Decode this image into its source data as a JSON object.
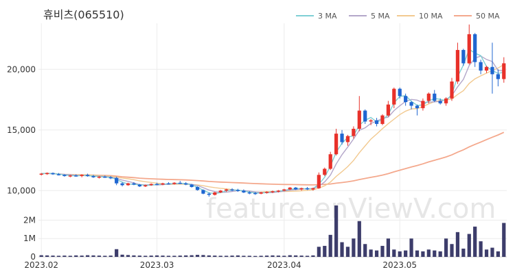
{
  "chart_data": {
    "type": "candlestick",
    "title": "휴비츠(065510)",
    "watermark": "feature.enViewV.com",
    "legend": {
      "placement": "top-right",
      "items": [
        {
          "name": "3 MA",
          "color": "#7ecfd4"
        },
        {
          "name": "5 MA",
          "color": "#b3a6c9"
        },
        {
          "name": "10 MA",
          "color": "#f2c98f"
        },
        {
          "name": "50 MA",
          "color": "#f4a88c"
        }
      ]
    },
    "colors": {
      "up": "#e8312a",
      "down": "#1f66d1",
      "volume": "#3d3d6b",
      "grid": "#ececec"
    },
    "price_axis": {
      "ylim": [
        9000,
        23800
      ],
      "ticks": [
        10000,
        15000,
        20000
      ],
      "tick_labels": [
        "10,000",
        "15,000",
        "20,000"
      ]
    },
    "volume_axis": {
      "ylim": [
        0,
        2800000
      ],
      "ticks": [
        0,
        1000000,
        2000000
      ],
      "tick_labels": [
        "0",
        "1M",
        "2M"
      ]
    },
    "x_labels": [
      {
        "index": 0,
        "label": "2023.02"
      },
      {
        "index": 20,
        "label": "2023.03"
      },
      {
        "index": 42,
        "label": "2023.04"
      },
      {
        "index": 62,
        "label": "2023.05"
      }
    ],
    "dates_count": 81,
    "ohlc": [
      [
        11350,
        11450,
        11250,
        11400
      ],
      [
        11400,
        11500,
        11300,
        11450
      ],
      [
        11450,
        11500,
        11300,
        11350
      ],
      [
        11350,
        11450,
        11250,
        11300
      ],
      [
        11300,
        11350,
        11150,
        11200
      ],
      [
        11200,
        11300,
        11100,
        11250
      ],
      [
        11250,
        11350,
        11150,
        11200
      ],
      [
        11200,
        11350,
        11100,
        11300
      ],
      [
        11300,
        11400,
        11150,
        11200
      ],
      [
        11200,
        11300,
        11050,
        11100
      ],
      [
        11100,
        11200,
        11000,
        11150
      ],
      [
        11150,
        11250,
        11050,
        11100
      ],
      [
        11100,
        11200,
        10950,
        11050
      ],
      [
        11050,
        11150,
        10450,
        10600
      ],
      [
        10600,
        10700,
        10350,
        10450
      ],
      [
        10450,
        10650,
        10400,
        10600
      ],
      [
        10600,
        10700,
        10450,
        10500
      ],
      [
        10500,
        10550,
        10300,
        10350
      ],
      [
        10350,
        10500,
        10300,
        10450
      ],
      [
        10450,
        10600,
        10400,
        10550
      ],
      [
        10550,
        10650,
        10450,
        10500
      ],
      [
        10500,
        10650,
        10450,
        10600
      ],
      [
        10600,
        10700,
        10500,
        10550
      ],
      [
        10550,
        10700,
        10500,
        10650
      ],
      [
        10650,
        10800,
        10550,
        10600
      ],
      [
        10600,
        10700,
        10450,
        10500
      ],
      [
        10500,
        10550,
        10250,
        10300
      ],
      [
        10300,
        10350,
        10000,
        10050
      ],
      [
        10050,
        10100,
        9700,
        9750
      ],
      [
        9750,
        9850,
        9500,
        9650
      ],
      [
        9650,
        9900,
        9600,
        9850
      ],
      [
        9850,
        10050,
        9800,
        10000
      ],
      [
        10000,
        10150,
        9900,
        10100
      ],
      [
        10100,
        10200,
        9950,
        10050
      ],
      [
        10050,
        10150,
        9900,
        10000
      ],
      [
        10000,
        10100,
        9800,
        9850
      ],
      [
        9850,
        9950,
        9700,
        9800
      ],
      [
        9800,
        9900,
        9650,
        9750
      ],
      [
        9750,
        9900,
        9700,
        9850
      ],
      [
        9850,
        9950,
        9750,
        9900
      ],
      [
        9900,
        10000,
        9800,
        9950
      ],
      [
        9950,
        10050,
        9850,
        10000
      ],
      [
        10000,
        10150,
        9950,
        10100
      ],
      [
        10100,
        10300,
        10050,
        10250
      ],
      [
        10250,
        10300,
        10050,
        10100
      ],
      [
        10100,
        10250,
        10000,
        10200
      ],
      [
        10200,
        10300,
        10050,
        10100
      ],
      [
        10100,
        10250,
        10000,
        10200
      ],
      [
        10200,
        11500,
        10150,
        11300
      ],
      [
        11300,
        11900,
        11200,
        11800
      ],
      [
        11800,
        13200,
        11700,
        13000
      ],
      [
        13000,
        15100,
        12900,
        14700
      ],
      [
        14700,
        15000,
        13800,
        14000
      ],
      [
        14000,
        14600,
        13700,
        14500
      ],
      [
        14500,
        15300,
        14300,
        15100
      ],
      [
        15100,
        17800,
        14900,
        16600
      ],
      [
        16600,
        16700,
        15500,
        15700
      ],
      [
        15700,
        15900,
        15400,
        15800
      ],
      [
        15800,
        16000,
        15300,
        15500
      ],
      [
        15500,
        16300,
        15400,
        16200
      ],
      [
        16200,
        17400,
        16100,
        17100
      ],
      [
        17100,
        18500,
        16800,
        18400
      ],
      [
        18400,
        18500,
        17600,
        17800
      ],
      [
        17800,
        18000,
        17000,
        17300
      ],
      [
        17300,
        17400,
        16700,
        17000
      ],
      [
        17000,
        17100,
        16200,
        16800
      ],
      [
        16800,
        17600,
        16600,
        17400
      ],
      [
        17400,
        18100,
        17200,
        18000
      ],
      [
        18000,
        18300,
        17300,
        17400
      ],
      [
        17400,
        17600,
        17100,
        17200
      ],
      [
        17200,
        17700,
        17000,
        17600
      ],
      [
        17600,
        19300,
        17400,
        19000
      ],
      [
        19000,
        22200,
        18800,
        21600
      ],
      [
        21600,
        21700,
        20300,
        20500
      ],
      [
        20500,
        23700,
        20400,
        22900
      ],
      [
        22900,
        23000,
        20200,
        20600
      ],
      [
        20600,
        20800,
        19600,
        19900
      ],
      [
        19900,
        20300,
        19700,
        20200
      ],
      [
        20200,
        22200,
        18000,
        19600
      ],
      [
        19600,
        20000,
        18600,
        19200
      ],
      [
        19200,
        21000,
        18900,
        20500
      ]
    ],
    "volume": [
      90000,
      80000,
      70000,
      60000,
      70000,
      60000,
      80000,
      70000,
      90000,
      80000,
      70000,
      60000,
      70000,
      420000,
      120000,
      100000,
      80000,
      70000,
      60000,
      70000,
      80000,
      70000,
      60000,
      60000,
      70000,
      80000,
      90000,
      110000,
      100000,
      80000,
      70000,
      60000,
      60000,
      70000,
      80000,
      60000,
      60000,
      50000,
      60000,
      70000,
      80000,
      70000,
      60000,
      90000,
      80000,
      70000,
      60000,
      80000,
      550000,
      600000,
      1200000,
      2800000,
      800000,
      550000,
      1000000,
      1950000,
      700000,
      400000,
      350000,
      600000,
      1000000,
      400000,
      300000,
      350000,
      1000000,
      350000,
      300000,
      400000,
      350000,
      300000,
      1000000,
      700000,
      1350000,
      450000,
      1250000,
      1650000,
      850000,
      400000,
      500000,
      300000,
      1850000
    ]
  }
}
